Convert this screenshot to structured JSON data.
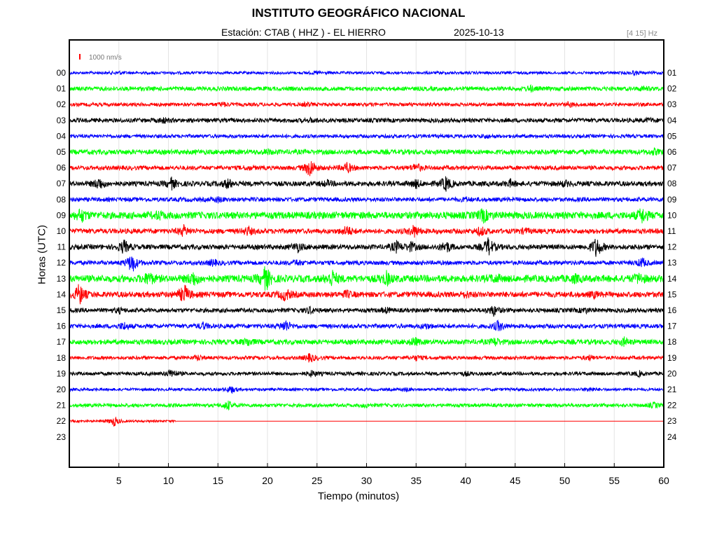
{
  "chart_data": {
    "type": "line",
    "title": "INSTITUTO GEOGRÁFICO NACIONAL",
    "station_label": "Estación:  CTAB ( HHZ ) - EL HIERRO",
    "date": "2025-10-13",
    "filter_label": "[4 15] Hz",
    "scale_label": "1000 nm/s",
    "xlabel": "Tiempo (minutos)",
    "ylabel": "Horas (UTC)",
    "xlim": [
      0,
      60
    ],
    "x_ticks": [
      "5",
      "10",
      "15",
      "20",
      "25",
      "30",
      "35",
      "40",
      "45",
      "50",
      "55",
      "60"
    ],
    "left_hour_labels": [
      "00",
      "01",
      "02",
      "03",
      "04",
      "05",
      "06",
      "07",
      "08",
      "09",
      "10",
      "11",
      "12",
      "13",
      "14",
      "15",
      "16",
      "17",
      "18",
      "19",
      "20",
      "21",
      "22",
      "23"
    ],
    "right_hour_labels": [
      "01",
      "02",
      "03",
      "04",
      "05",
      "06",
      "07",
      "08",
      "09",
      "10",
      "11",
      "12",
      "13",
      "14",
      "15",
      "16",
      "17",
      "18",
      "19",
      "20",
      "21",
      "22",
      "23",
      "24"
    ],
    "grid": true,
    "colors": {
      "blue": "#0000ff",
      "green": "#00ff00",
      "red": "#ff0000",
      "black": "#000000"
    },
    "traces": [
      {
        "hour": "00",
        "color": "#0000ff",
        "noise": 2.0,
        "end_minute": 60,
        "events": [
          [
            5,
            1.5
          ],
          [
            25,
            1.5
          ],
          [
            57,
            2
          ]
        ]
      },
      {
        "hour": "01",
        "color": "#00ff00",
        "noise": 3.0,
        "end_minute": 60,
        "events": [
          [
            46.5,
            3
          ],
          [
            58,
            2
          ]
        ]
      },
      {
        "hour": "02",
        "color": "#ff0000",
        "noise": 2.5,
        "end_minute": 60,
        "events": [
          [
            15.5,
            2.5
          ],
          [
            50.5,
            3
          ],
          [
            24,
            2
          ]
        ]
      },
      {
        "hour": "03",
        "color": "#000000",
        "noise": 3.0,
        "end_minute": 60,
        "events": [
          [
            9.5,
            3
          ],
          [
            24.5,
            2
          ],
          [
            58.5,
            2
          ]
        ]
      },
      {
        "hour": "04",
        "color": "#0000ff",
        "noise": 2.5,
        "end_minute": 60,
        "events": [
          [
            42,
            2
          ]
        ]
      },
      {
        "hour": "05",
        "color": "#00ff00",
        "noise": 3.5,
        "end_minute": 60,
        "events": [
          [
            20,
            2.5
          ],
          [
            59,
            3
          ]
        ]
      },
      {
        "hour": "06",
        "color": "#ff0000",
        "noise": 3.0,
        "end_minute": 60,
        "events": [
          [
            24.3,
            13
          ],
          [
            28,
            7
          ],
          [
            35,
            6
          ],
          [
            18,
            2
          ]
        ]
      },
      {
        "hour": "07",
        "color": "#000000",
        "noise": 3.5,
        "end_minute": 60,
        "events": [
          [
            3,
            8
          ],
          [
            10.3,
            7
          ],
          [
            16,
            6
          ],
          [
            26,
            3
          ],
          [
            35,
            5
          ],
          [
            38,
            10
          ],
          [
            44.5,
            4
          ],
          [
            50,
            3
          ]
        ]
      },
      {
        "hour": "08",
        "color": "#0000ff",
        "noise": 3.0,
        "end_minute": 60,
        "events": [
          [
            15,
            3
          ],
          [
            40,
            2
          ]
        ]
      },
      {
        "hour": "09",
        "color": "#00ff00",
        "noise": 5.0,
        "end_minute": 60,
        "events": [
          [
            1.2,
            8
          ],
          [
            9,
            4
          ],
          [
            41.8,
            8
          ],
          [
            57.8,
            9
          ]
        ]
      },
      {
        "hour": "10",
        "color": "#ff0000",
        "noise": 3.5,
        "end_minute": 60,
        "events": [
          [
            11.5,
            7
          ],
          [
            18,
            5
          ],
          [
            28,
            7
          ],
          [
            34.8,
            8
          ],
          [
            41.5,
            6
          ],
          [
            46,
            3
          ]
        ]
      },
      {
        "hour": "11",
        "color": "#000000",
        "noise": 3.5,
        "end_minute": 60,
        "events": [
          [
            5.5,
            9
          ],
          [
            23,
            6
          ],
          [
            33,
            7
          ],
          [
            34.5,
            6
          ],
          [
            38,
            8
          ],
          [
            42.3,
            12
          ],
          [
            53.2,
            14
          ]
        ]
      },
      {
        "hour": "12",
        "color": "#0000ff",
        "noise": 3.0,
        "end_minute": 60,
        "events": [
          [
            6.3,
            14
          ],
          [
            14.5,
            4
          ],
          [
            23,
            3
          ],
          [
            57.8,
            6
          ]
        ]
      },
      {
        "hour": "13",
        "color": "#00ff00",
        "noise": 5.0,
        "end_minute": 60,
        "events": [
          [
            8,
            8
          ],
          [
            12.5,
            9
          ],
          [
            19.8,
            16
          ],
          [
            26.5,
            11
          ],
          [
            32,
            8
          ],
          [
            43,
            4
          ],
          [
            51,
            4
          ],
          [
            57.5,
            6
          ]
        ]
      },
      {
        "hour": "14",
        "color": "#ff0000",
        "noise": 4.0,
        "end_minute": 60,
        "events": [
          [
            1,
            14
          ],
          [
            11.6,
            13
          ],
          [
            21.8,
            8
          ],
          [
            28,
            4
          ],
          [
            40,
            3
          ],
          [
            53,
            3
          ]
        ]
      },
      {
        "hour": "15",
        "color": "#000000",
        "noise": 3.0,
        "end_minute": 60,
        "events": [
          [
            5,
            3
          ],
          [
            24.3,
            4
          ],
          [
            32,
            3
          ],
          [
            42.8,
            7
          ],
          [
            52,
            3
          ]
        ]
      },
      {
        "hour": "16",
        "color": "#0000ff",
        "noise": 3.0,
        "end_minute": 60,
        "events": [
          [
            5.5,
            5
          ],
          [
            13.5,
            4
          ],
          [
            21.8,
            8
          ],
          [
            43.3,
            7
          ],
          [
            36,
            3
          ]
        ]
      },
      {
        "hour": "17",
        "color": "#00ff00",
        "noise": 3.5,
        "end_minute": 60,
        "events": [
          [
            18,
            5
          ],
          [
            34.8,
            5
          ],
          [
            43,
            5
          ],
          [
            56,
            5
          ]
        ]
      },
      {
        "hour": "18",
        "color": "#ff0000",
        "noise": 2.5,
        "end_minute": 60,
        "events": [
          [
            24.3,
            6
          ],
          [
            13,
            3
          ],
          [
            52.5,
            3
          ],
          [
            35,
            3
          ]
        ]
      },
      {
        "hour": "19",
        "color": "#000000",
        "noise": 2.5,
        "end_minute": 60,
        "events": [
          [
            10.3,
            6
          ],
          [
            24.5,
            4
          ],
          [
            40,
            2
          ],
          [
            57.5,
            3
          ]
        ]
      },
      {
        "hour": "20",
        "color": "#0000ff",
        "noise": 2.0,
        "end_minute": 60,
        "events": [
          [
            16.3,
            5
          ],
          [
            34,
            2
          ],
          [
            52.5,
            3
          ]
        ]
      },
      {
        "hour": "21",
        "color": "#00ff00",
        "noise": 2.5,
        "end_minute": 60,
        "events": [
          [
            16,
            6
          ],
          [
            30,
            2
          ],
          [
            59,
            3
          ]
        ]
      },
      {
        "hour": "22",
        "color": "#ff0000",
        "noise": 1.5,
        "end_minute": 10.8,
        "events": [
          [
            4.5,
            7
          ]
        ]
      }
    ]
  }
}
